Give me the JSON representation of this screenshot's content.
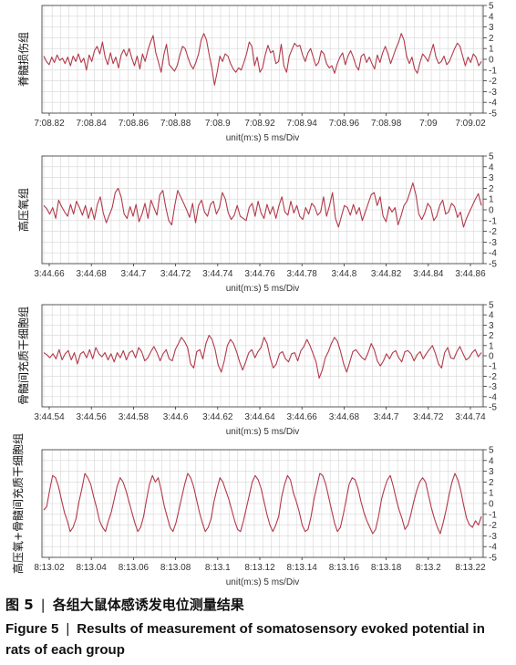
{
  "colors": {
    "trace": "#b3394a",
    "grid": "#d6d6d6",
    "axis": "#333333"
  },
  "caption": {
    "cn_num": "图 5",
    "cn_text": "各组大鼠体感诱发电位测量结果",
    "separator": "|",
    "en_num": "Figure 5",
    "en_text": "Results of measurement of somatosensory evoked potential in rats of each group"
  },
  "chart_data": [
    {
      "type": "line",
      "group_label": "脊髓损伤组",
      "xlabel": "unit(m:s) 5 ms/Div",
      "x_ticks": [
        "7:08.82",
        "7:08.84",
        "7:08.86",
        "7:08.88",
        "7:08.9",
        "7:08.92",
        "7:08.94",
        "7:08.96",
        "7:08.98",
        "7:09",
        "7:09.02"
      ],
      "y_ticks": [
        "5",
        "4",
        "3",
        "2",
        "1",
        "0",
        "-1",
        "-2",
        "-3",
        "-4",
        "-5"
      ],
      "ylim": [
        -5,
        5
      ],
      "grid": true,
      "x_step": 0.002,
      "values": [
        0.3,
        -0.2,
        -0.5,
        0.2,
        -0.3,
        0.4,
        -0.1,
        0.1,
        -0.4,
        0.2,
        -0.6,
        0.3,
        -0.2,
        0.5,
        -0.3,
        0.1,
        -1.0,
        0.4,
        -0.2,
        0.8,
        1.2,
        0.5,
        1.6,
        0.2,
        -0.5,
        0.6,
        -0.4,
        0.2,
        -0.8,
        0.4,
        0.9,
        0.3,
        1.0,
        0.1,
        -0.6,
        0.3,
        -0.9,
        0.5,
        -0.2,
        0.8,
        1.6,
        2.2,
        0.6,
        -0.3,
        -1.2,
        0.4,
        1.4,
        -0.5,
        -0.8,
        -1.1,
        -0.6,
        0.4,
        1.2,
        1.0,
        0.2,
        -0.5,
        -0.9,
        -0.3,
        0.5,
        1.8,
        2.4,
        1.8,
        0.4,
        -0.8,
        -2.4,
        -1.2,
        0.3,
        -0.2,
        0.5,
        0.3,
        -0.4,
        -0.9,
        -1.2,
        -0.8,
        -1.0,
        -0.3,
        0.5,
        1.6,
        1.2,
        -0.6,
        0.2,
        -1.2,
        -0.8,
        0.4,
        1.3,
        0.6,
        0.8,
        -0.4,
        -0.2,
        1.4,
        -0.6,
        -1.2,
        0.3,
        0.9,
        1.5,
        1.2,
        1.3,
        0.4,
        -0.2,
        0.6,
        1.0,
        0.2,
        -0.6,
        -0.3,
        0.8,
        0.5,
        -0.4,
        -0.8,
        -0.6,
        -1.3,
        -0.4,
        0.2,
        0.6,
        -0.5,
        0.3,
        0.8,
        0.2,
        -0.6,
        -1.0,
        0.3,
        0.5,
        -0.3,
        0.2,
        -0.4,
        -0.9,
        0.4,
        -0.3,
        0.6,
        1.2,
        0.5,
        -0.4,
        0.3,
        1.0,
        1.6,
        2.4,
        1.8,
        0.3,
        -0.4,
        0.2,
        -0.9,
        -1.3,
        -0.3,
        0.5,
        0.2,
        -0.2,
        0.6,
        1.4,
        0.2,
        -0.4,
        -0.2,
        0.3,
        -0.5,
        -0.2,
        0.4,
        1.0,
        1.5,
        1.2,
        0.3,
        -0.6,
        0.2,
        -0.3,
        0.5,
        0.2,
        -0.6,
        -0.2
      ]
    },
    {
      "type": "line",
      "group_label": "高压氧组",
      "xlabel": "unit(m:s) 5 ms/Div",
      "x_ticks": [
        "3:44.66",
        "3:44.68",
        "3:44.7",
        "3:44.72",
        "3:44.74",
        "3:44.76",
        "3:44.78",
        "3:44.8",
        "3:44.82",
        "3:44.84",
        "3:44.86"
      ],
      "y_ticks": [
        "5",
        "4",
        "3",
        "2",
        "1",
        "0",
        "-1",
        "-2",
        "-3",
        "-4",
        "-5"
      ],
      "ylim": [
        -5,
        5
      ],
      "grid": true,
      "x_step": 0.002,
      "values": [
        0.4,
        0.1,
        -0.4,
        0.2,
        -0.8,
        0.9,
        0.3,
        -0.2,
        -0.6,
        0.5,
        -0.4,
        0.8,
        0.2,
        -0.5,
        0.4,
        -0.8,
        0.2,
        -0.9,
        0.5,
        1.2,
        -0.3,
        -1.2,
        -0.5,
        0.2,
        1.6,
        2.0,
        1.2,
        -0.4,
        -0.8,
        0.3,
        -0.6,
        0.5,
        -1.1,
        -0.4,
        0.6,
        -0.8,
        0.9,
        0.2,
        -0.5,
        1.4,
        1.8,
        0.2,
        -1.0,
        -1.4,
        0.4,
        1.8,
        1.2,
        0.6,
        0.0,
        -0.7,
        0.6,
        -1.2,
        0.4,
        0.9,
        -0.2,
        -0.6,
        0.5,
        0.8,
        -0.4,
        0.2,
        1.6,
        1.0,
        -0.3,
        -0.9,
        -0.5,
        0.4,
        -0.6,
        -0.8,
        -1.0,
        0.2,
        0.6,
        -0.6,
        0.8,
        -0.3,
        -0.8,
        0.5,
        -0.4,
        0.3,
        -0.8,
        0.4,
        1.2,
        -0.2,
        -0.5,
        0.8,
        -0.3,
        0.4,
        -0.6,
        -0.9,
        0.2,
        -0.4,
        0.6,
        0.3,
        -0.5,
        -0.2,
        1.2,
        -0.6,
        0.4,
        1.6,
        -0.8,
        -1.6,
        -0.6,
        0.4,
        0.2,
        -0.5,
        0.5,
        -0.4,
        0.2,
        -1.0,
        -0.2,
        0.6,
        1.4,
        1.6,
        0.4,
        1.2,
        -0.6,
        -1.1,
        0.3,
        -0.2,
        0.2,
        -1.4,
        -0.6,
        0.4,
        0.8,
        1.6,
        2.5,
        1.4,
        -0.4,
        -0.9,
        -0.3,
        0.6,
        0.2,
        -1.0,
        -0.6,
        0.4,
        0.9,
        -0.4,
        -0.2,
        0.6,
        0.3,
        -0.7,
        -0.2,
        -1.6,
        -0.8,
        -0.2,
        0.4,
        1.0,
        1.5,
        0.4
      ]
    },
    {
      "type": "line",
      "group_label": "骨髓间充质干细胞组",
      "xlabel": "unit(m:s) 5 ms/Div",
      "x_ticks": [
        "3:44.54",
        "3:44.56",
        "3:44.58",
        "3:44.6",
        "3:44.62",
        "3:44.64",
        "3:44.66",
        "3:44.68",
        "3:44.7",
        "3:44.72",
        "3:44.74"
      ],
      "y_ticks": [
        "5",
        "4",
        "3",
        "2",
        "1",
        "0",
        "-1",
        "-2",
        "-3",
        "-4",
        "-5"
      ],
      "ylim": [
        -5,
        5
      ],
      "grid": true,
      "x_step": 0.002,
      "values": [
        0.3,
        0.1,
        -0.2,
        0.2,
        -0.3,
        0.6,
        -0.4,
        0.2,
        0.5,
        -0.4,
        0.3,
        -0.8,
        0.2,
        0.4,
        -0.2,
        0.6,
        -0.3,
        0.8,
        0.2,
        -0.1,
        0.3,
        -0.4,
        0.2,
        -0.6,
        0.3,
        -0.2,
        0.5,
        -0.4,
        0.3,
        0.5,
        -0.2,
        0.8,
        0.4,
        -0.5,
        -0.2,
        0.4,
        0.9,
        0.3,
        -0.5,
        0.2,
        0.6,
        -0.3,
        -0.5,
        0.6,
        1.2,
        1.8,
        1.4,
        0.8,
        -0.8,
        -1.2,
        0.4,
        0.6,
        -0.3,
        1.2,
        2.0,
        1.6,
        0.6,
        -0.9,
        -1.6,
        -0.5,
        1.0,
        1.6,
        1.2,
        0.4,
        -0.6,
        -1.4,
        -0.6,
        0.3,
        0.6,
        -0.2,
        0.4,
        0.8,
        1.8,
        1.2,
        -0.2,
        -1.2,
        -0.8,
        0.2,
        0.4,
        -0.3,
        -0.6,
        0.2,
        0.3,
        -0.5,
        0.5,
        0.9,
        1.6,
        1.0,
        0.2,
        -0.6,
        -2.2,
        -1.4,
        -0.2,
        0.4,
        1.2,
        1.8,
        1.4,
        0.4,
        -0.8,
        -1.6,
        -0.6,
        0.4,
        0.6,
        0.2,
        -0.2,
        -0.4,
        0.3,
        1.2,
        0.6,
        -0.5,
        -1.0,
        -0.5,
        0.2,
        -0.3,
        0.3,
        0.5,
        -0.2,
        -0.6,
        0.4,
        0.5,
        0.2,
        -0.5,
        0.1,
        0.4,
        -0.3,
        0.2,
        0.6,
        1.0,
        0.2,
        -0.8,
        -1.2,
        0.3,
        0.8,
        -0.2,
        -0.3,
        0.4,
        0.9,
        0.2,
        -0.4,
        -0.2,
        0.3,
        0.6,
        -0.1,
        0.3
      ]
    },
    {
      "type": "line",
      "group_label": "高压氧+骨髓间充质干细胞组",
      "xlabel": "unit(m:s) 5 ms/Div",
      "x_ticks": [
        "8:13.02",
        "8:13.04",
        "8:13.06",
        "8:13.08",
        "8:13.1",
        "8:13.12",
        "8:13.14",
        "8:13.16",
        "8:13.18",
        "8:13.2",
        "8:13.22"
      ],
      "y_ticks": [
        "5",
        "4",
        "3",
        "2",
        "1",
        "0",
        "-1",
        "-2",
        "-3",
        "-4",
        "-5"
      ],
      "ylim": [
        -5,
        5
      ],
      "grid": true,
      "x_step": 0.002,
      "values": [
        -0.6,
        -0.3,
        1.2,
        2.6,
        2.4,
        1.6,
        0.4,
        -0.8,
        -1.6,
        -2.6,
        -2.2,
        -1.4,
        0.2,
        1.4,
        2.8,
        2.4,
        1.8,
        0.6,
        -0.4,
        -1.6,
        -2.2,
        -2.6,
        -1.6,
        -0.8,
        0.4,
        1.6,
        2.4,
        2.0,
        1.2,
        0.2,
        -0.8,
        -1.8,
        -2.6,
        -2.2,
        -1.2,
        0.4,
        1.8,
        2.6,
        2.0,
        2.4,
        1.2,
        -0.2,
        -1.2,
        -2.2,
        -2.6,
        -1.8,
        -0.6,
        0.6,
        1.8,
        2.8,
        2.4,
        1.6,
        0.4,
        -0.8,
        -1.8,
        -2.6,
        -2.2,
        -1.4,
        0.2,
        1.4,
        2.4,
        2.0,
        1.2,
        0.4,
        -0.6,
        -1.6,
        -2.4,
        -2.6,
        -1.6,
        -0.4,
        0.8,
        2.0,
        2.6,
        2.2,
        1.4,
        0.2,
        -1.0,
        -2.0,
        -2.6,
        -2.0,
        -1.2,
        0.6,
        1.8,
        2.6,
        2.2,
        1.0,
        0.2,
        -0.8,
        -2.0,
        -2.6,
        -2.4,
        -1.2,
        0.4,
        1.6,
        2.8,
        2.6,
        1.8,
        0.6,
        -0.6,
        -1.8,
        -2.6,
        -2.2,
        -1.0,
        0.4,
        1.8,
        2.4,
        2.2,
        1.4,
        0.2,
        -0.8,
        -1.6,
        -2.2,
        -2.8,
        -2.4,
        -1.2,
        0.4,
        1.4,
        2.2,
        2.6,
        1.6,
        0.4,
        -0.6,
        -1.4,
        -2.4,
        -2.0,
        -1.0,
        0.2,
        1.2,
        2.0,
        2.4,
        2.0,
        0.8,
        -0.4,
        -1.4,
        -2.2,
        -2.8,
        -1.8,
        -0.6,
        0.8,
        2.0,
        2.8,
        2.2,
        1.2,
        -0.2,
        -1.4,
        -2.0,
        -2.2,
        -1.6,
        -2.0,
        -1.2
      ]
    }
  ]
}
